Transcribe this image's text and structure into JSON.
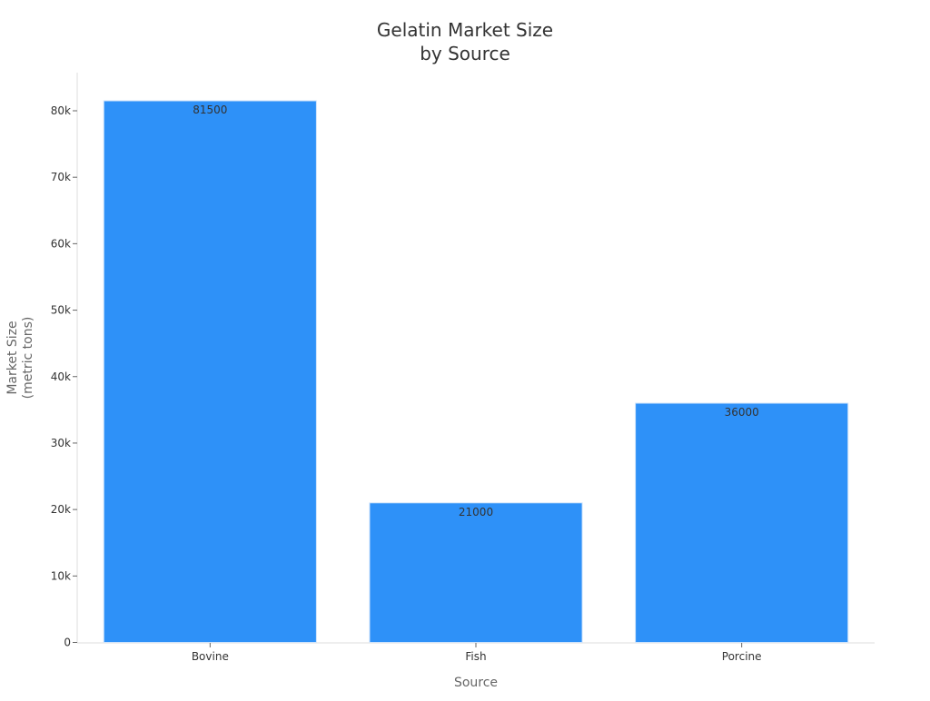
{
  "chart_data": {
    "type": "bar",
    "title_lines": [
      "Gelatin Market Size",
      "by Source"
    ],
    "xlabel": "Source",
    "ylabel_lines": [
      "Market Size",
      "(metric tons)"
    ],
    "categories": [
      "Bovine",
      "Fish",
      "Porcine"
    ],
    "values": [
      81500,
      21000,
      36000
    ],
    "data_labels": [
      "81500",
      "21000",
      "36000"
    ],
    "ylim": [
      0,
      86000
    ],
    "yticks": [
      0,
      10000,
      20000,
      30000,
      40000,
      50000,
      60000,
      70000,
      80000
    ],
    "ytick_labels": [
      "0",
      "10k",
      "20k",
      "30k",
      "40k",
      "50k",
      "60k",
      "70k",
      "80k"
    ],
    "grid": false,
    "bar_color": "#2e91f8"
  }
}
